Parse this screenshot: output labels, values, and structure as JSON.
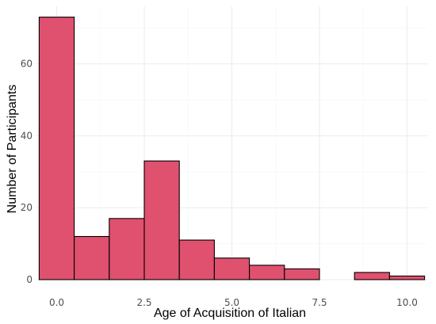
{
  "chart_data": {
    "type": "bar",
    "subtype": "histogram",
    "xlabel": "Age of Acquisition of Italian",
    "ylabel": "Number of Participants",
    "bin_width": 1,
    "bins": [
      {
        "x": 0,
        "count": 73
      },
      {
        "x": 1,
        "count": 12
      },
      {
        "x": 2,
        "count": 17
      },
      {
        "x": 3,
        "count": 33
      },
      {
        "x": 4,
        "count": 11
      },
      {
        "x": 5,
        "count": 6
      },
      {
        "x": 6,
        "count": 4
      },
      {
        "x": 7,
        "count": 3
      },
      {
        "x": 8,
        "count": 0
      },
      {
        "x": 9,
        "count": 2
      },
      {
        "x": 10,
        "count": 1
      }
    ],
    "xlim": [
      -0.6,
      10.6
    ],
    "ylim": [
      0,
      76
    ],
    "x_ticks": [
      0,
      2.5,
      5,
      7.5,
      10
    ],
    "x_tick_labels": [
      "0.0",
      "2.5",
      "5.0",
      "7.5",
      "10.0"
    ],
    "y_ticks": [
      0,
      20,
      40,
      60
    ],
    "y_tick_labels": [
      "0",
      "20",
      "40",
      "60"
    ],
    "grid": true,
    "bar_color": "#e0506f",
    "edge_color": "#000000"
  }
}
